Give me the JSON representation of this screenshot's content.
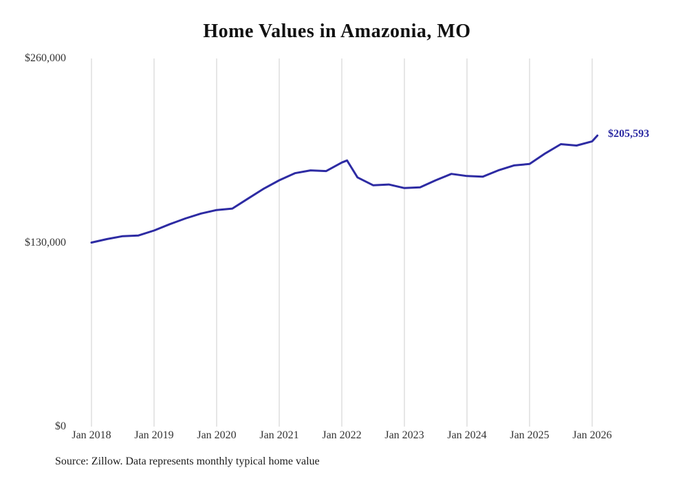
{
  "chart_data": {
    "type": "line",
    "title": "Home Values in Amazonia, MO",
    "xlabel": "",
    "ylabel": "",
    "ylim": [
      0,
      260000
    ],
    "grid": "vertical-only",
    "line_color": "#2d2ba3",
    "gridline_color": "#cccccc",
    "end_label": "$205,593",
    "end_value": 205593,
    "source": "Source: Zillow. Data represents monthly typical home value",
    "x_tick_labels": [
      "Jan 2018",
      "Jan 2019",
      "Jan 2020",
      "Jan 2021",
      "Jan 2022",
      "Jan 2023",
      "Jan 2024",
      "Jan 2025",
      "Jan 2026"
    ],
    "y_ticks": [
      {
        "label": "$0",
        "value": 0
      },
      {
        "label": "$130,000",
        "value": 130000
      },
      {
        "label": "$260,000",
        "value": 260000
      }
    ],
    "series": [
      {
        "name": "Typical home value",
        "points": [
          {
            "x": "2018-01",
            "y": 130000
          },
          {
            "x": "2018-04",
            "y": 132500
          },
          {
            "x": "2018-07",
            "y": 134500
          },
          {
            "x": "2018-10",
            "y": 135000
          },
          {
            "x": "2019-01",
            "y": 138500
          },
          {
            "x": "2019-04",
            "y": 143000
          },
          {
            "x": "2019-07",
            "y": 147000
          },
          {
            "x": "2019-10",
            "y": 150500
          },
          {
            "x": "2020-01",
            "y": 153000
          },
          {
            "x": "2020-04",
            "y": 154000
          },
          {
            "x": "2020-07",
            "y": 161000
          },
          {
            "x": "2020-10",
            "y": 168000
          },
          {
            "x": "2021-01",
            "y": 174000
          },
          {
            "x": "2021-04",
            "y": 179000
          },
          {
            "x": "2021-07",
            "y": 181000
          },
          {
            "x": "2021-10",
            "y": 180500
          },
          {
            "x": "2022-01",
            "y": 186500
          },
          {
            "x": "2022-02",
            "y": 188000
          },
          {
            "x": "2022-04",
            "y": 176000
          },
          {
            "x": "2022-07",
            "y": 170500
          },
          {
            "x": "2022-10",
            "y": 171000
          },
          {
            "x": "2023-01",
            "y": 168500
          },
          {
            "x": "2023-04",
            "y": 169000
          },
          {
            "x": "2023-07",
            "y": 174000
          },
          {
            "x": "2023-10",
            "y": 178500
          },
          {
            "x": "2024-01",
            "y": 177000
          },
          {
            "x": "2024-04",
            "y": 176500
          },
          {
            "x": "2024-07",
            "y": 181000
          },
          {
            "x": "2024-10",
            "y": 184500
          },
          {
            "x": "2025-01",
            "y": 185500
          },
          {
            "x": "2025-04",
            "y": 193000
          },
          {
            "x": "2025-07",
            "y": 199500
          },
          {
            "x": "2025-10",
            "y": 198500
          },
          {
            "x": "2026-01",
            "y": 201500
          },
          {
            "x": "2026-02",
            "y": 205593
          }
        ]
      }
    ]
  }
}
